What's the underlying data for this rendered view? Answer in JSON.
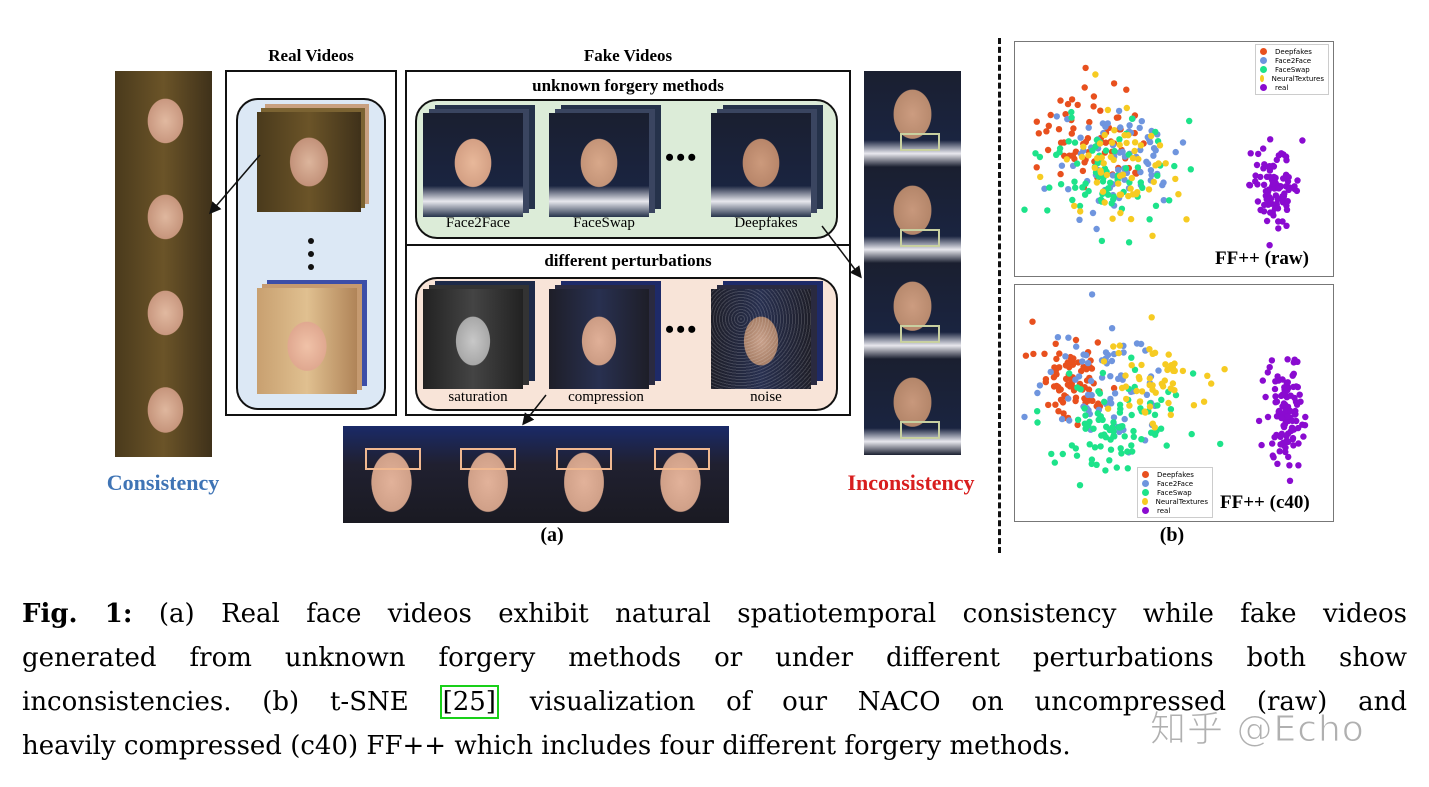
{
  "figure": {
    "panel_a": {
      "label": "(a)",
      "real_videos_header": "Real Videos",
      "fake_videos_header": "Fake Videos",
      "unknown_methods_header": "unknown forgery methods",
      "perturbations_header": "different perturbations",
      "forgery_methods": [
        "Face2Face",
        "FaceSwap",
        "Deepfakes"
      ],
      "perturbations": [
        "saturation",
        "compression",
        "noise"
      ],
      "ellipsis": "•••",
      "consistency_label": "Consistency",
      "inconsistency_label": "Inconsistency",
      "colors": {
        "consistency": "#3f74b5",
        "inconsistency": "#d81e1e",
        "real_box_bg": "#dce8f5",
        "forgery_box_bg": "#dcecd8",
        "perturb_box_bg": "#f8e4d8",
        "roi_mouth": "#c8d0a0",
        "roi_eyes": "#f0b890"
      }
    },
    "panel_b": {
      "label": "(b)"
    }
  },
  "chart_data": [
    {
      "type": "scatter",
      "title": "FF++ (raw)",
      "xlabel": "",
      "ylabel": "",
      "legend_position": "upper right",
      "grid": false,
      "legend": [
        "Deepfakes",
        "Face2Face",
        "FaceSwap",
        "NeuralTextures",
        "real"
      ],
      "colors": [
        "#e8501e",
        "#6f95de",
        "#1de38a",
        "#f6cb22",
        "#8a0bd0"
      ],
      "series": [
        {
          "name": "Deepfakes",
          "cluster": {
            "cx": 0.25,
            "cy": 0.4,
            "sx": 0.16,
            "sy": 0.2
          },
          "n": 70
        },
        {
          "name": "Face2Face",
          "cluster": {
            "cx": 0.32,
            "cy": 0.5,
            "sx": 0.18,
            "sy": 0.22
          },
          "n": 75
        },
        {
          "name": "FaceSwap",
          "cluster": {
            "cx": 0.28,
            "cy": 0.58,
            "sx": 0.18,
            "sy": 0.22
          },
          "n": 80
        },
        {
          "name": "NeuralTextures",
          "cluster": {
            "cx": 0.35,
            "cy": 0.55,
            "sx": 0.17,
            "sy": 0.22
          },
          "n": 60
        },
        {
          "name": "real",
          "cluster": {
            "cx": 0.82,
            "cy": 0.62,
            "sx": 0.07,
            "sy": 0.14
          },
          "n": 95
        }
      ],
      "note": "t-SNE embedding; real samples form a separate cluster on the right, four forgery methods intermixed on the left"
    },
    {
      "type": "scatter",
      "title": "FF++ (c40)",
      "xlabel": "",
      "ylabel": "",
      "legend_position": "lower center",
      "grid": false,
      "legend": [
        "Deepfakes",
        "Face2Face",
        "FaceSwap",
        "NeuralTextures",
        "real"
      ],
      "colors": [
        "#e8501e",
        "#6f95de",
        "#1de38a",
        "#f6cb22",
        "#8a0bd0"
      ],
      "series": [
        {
          "name": "Deepfakes",
          "cluster": {
            "cx": 0.18,
            "cy": 0.38,
            "sx": 0.1,
            "sy": 0.16
          },
          "n": 80
        },
        {
          "name": "Face2Face",
          "cluster": {
            "cx": 0.3,
            "cy": 0.45,
            "sx": 0.18,
            "sy": 0.2
          },
          "n": 70
        },
        {
          "name": "FaceSwap",
          "cluster": {
            "cx": 0.3,
            "cy": 0.58,
            "sx": 0.2,
            "sy": 0.22
          },
          "n": 90
        },
        {
          "name": "NeuralTextures",
          "cluster": {
            "cx": 0.45,
            "cy": 0.42,
            "sx": 0.18,
            "sy": 0.18
          },
          "n": 55
        },
        {
          "name": "real",
          "cluster": {
            "cx": 0.85,
            "cy": 0.55,
            "sx": 0.05,
            "sy": 0.22
          },
          "n": 110
        }
      ],
      "note": "t-SNE embedding; real samples form a vertical cluster on the right"
    }
  ],
  "caption": {
    "prefix": "Fig. 1:",
    "lines": [
      " (a) Real face videos exhibit natural spatiotemporal consistency while fake videos",
      "generated from unknown forgery methods or under different perturbations both show",
      "inconsistencies. (b) t-SNE ",
      " visualization of our NACO on uncompressed (raw) and",
      "heavily compressed (c40) FF++ which includes four different forgery methods."
    ],
    "citation": "[25]"
  },
  "watermark": "知乎 @Echo"
}
